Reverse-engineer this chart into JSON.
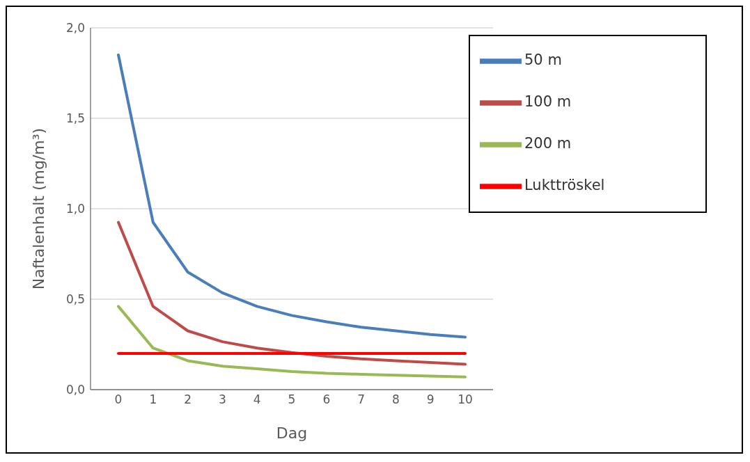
{
  "chart_data": {
    "type": "line",
    "xlabel": "Dag",
    "ylabel": "Naftalenhalt (mg/m³)",
    "categories": [
      "0",
      "1",
      "2",
      "3",
      "4",
      "5",
      "6",
      "7",
      "8",
      "9",
      "10"
    ],
    "ylim": [
      0,
      2
    ],
    "yticks": [
      {
        "value": 0,
        "label": "0,0"
      },
      {
        "value": 0.5,
        "label": "0,5"
      },
      {
        "value": 1,
        "label": "1,0"
      },
      {
        "value": 1.5,
        "label": "1,5"
      },
      {
        "value": 2,
        "label": "2,0"
      }
    ],
    "grid": "y",
    "legend": "top right",
    "marker": "none",
    "line_style": "solid",
    "series": [
      {
        "name": "50 m",
        "color": "#4a7ebb",
        "values": [
          1.85,
          0.925,
          0.65,
          0.535,
          0.46,
          0.41,
          0.375,
          0.345,
          0.325,
          0.305,
          0.29
        ]
      },
      {
        "name": "100 m",
        "color": "#be4b48",
        "values": [
          0.925,
          0.46,
          0.325,
          0.265,
          0.23,
          0.205,
          0.185,
          0.17,
          0.16,
          0.15,
          0.14
        ]
      },
      {
        "name": "200 m",
        "color": "#98b954",
        "values": [
          0.46,
          0.23,
          0.16,
          0.13,
          0.115,
          0.1,
          0.09,
          0.085,
          0.08,
          0.075,
          0.07
        ]
      },
      {
        "name": "Lukttröskel",
        "color": "#ff0000",
        "values": [
          0.2,
          0.2,
          0.2,
          0.2,
          0.2,
          0.2,
          0.2,
          0.2,
          0.2,
          0.2,
          0.2
        ]
      }
    ]
  }
}
